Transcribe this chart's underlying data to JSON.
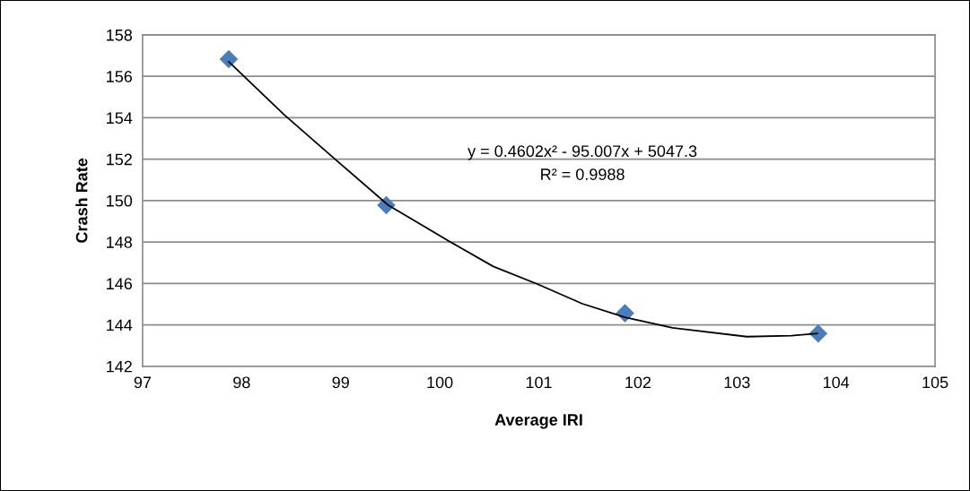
{
  "chart_data": {
    "type": "scatter",
    "xlabel": "Average IRI",
    "ylabel": "Crash Rate",
    "xlim": [
      97,
      105
    ],
    "xticks": [
      97,
      98,
      99,
      100,
      101,
      102,
      103,
      104,
      105
    ],
    "ylim": [
      142,
      158
    ],
    "yticks": [
      142,
      144,
      146,
      148,
      150,
      152,
      154,
      156,
      158
    ],
    "grid": "y",
    "marker": "diamond",
    "legend": false,
    "series": [
      {
        "color": "#4a7ebb",
        "x": [
          97.87,
          99.46,
          101.87,
          103.82
        ],
        "values": [
          156.83,
          149.78,
          144.56,
          143.58
        ]
      },
      {
        "type": "line",
        "color": "#000000",
        "marker": "none",
        "line_style": "solid",
        "x": [
          97.87,
          98.43,
          98.94,
          99.48,
          100.09,
          100.54,
          100.99,
          101.44,
          101.87,
          102.35,
          103.1,
          103.55,
          103.81
        ],
        "values": [
          156.7,
          154.14,
          152.01,
          149.78,
          148.05,
          146.82,
          145.96,
          145.02,
          144.37,
          143.86,
          143.43,
          143.48,
          143.58
        ]
      }
    ],
    "annotations": [
      "y = 0.4602x² - 95.007x + 5047.3",
      "R² = 0.9988"
    ]
  }
}
